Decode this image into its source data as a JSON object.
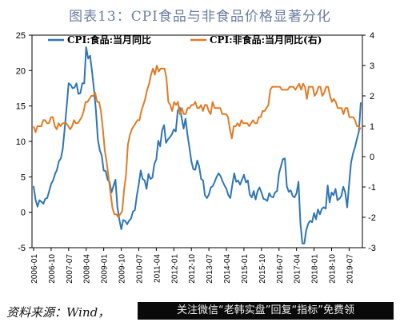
{
  "title": "图表13：CPI食品与非食品价格显著分化",
  "source": "资料来源：Wind，",
  "watermark": "关注微信“老韩实盘”回复“指标”免费领",
  "colors": {
    "food": "#2e75b6",
    "nonfood": "#e07b24"
  },
  "chart_data": {
    "type": "line",
    "title": "图表13：CPI食品与非食品价格显著分化",
    "x_labels": [
      "2006-01",
      "2006-10",
      "2007-07",
      "2008-04",
      "2009-01",
      "2009-10",
      "2010-07",
      "2011-04",
      "2012-01",
      "2012-10",
      "2013-07",
      "2014-04",
      "2015-01",
      "2015-10",
      "2016-07",
      "2017-04",
      "2018-01",
      "2018-10",
      "2019-07"
    ],
    "y_left": {
      "min": -5,
      "max": 25,
      "ticks": [
        -5,
        0,
        5,
        10,
        15,
        20,
        25
      ]
    },
    "y_right": {
      "min": -3,
      "max": 4,
      "ticks": [
        -3,
        -2,
        -1,
        0,
        1,
        2,
        3,
        4
      ]
    },
    "legend_position": "top",
    "series": [
      {
        "name": "CPI:食品:当月同比",
        "axis": "left",
        "color": "#2e75b6",
        "values": [
          3.7,
          1.8,
          0.8,
          1.7,
          1.5,
          1.2,
          1.9,
          2.0,
          3.0,
          4.0,
          4.5,
          5.4,
          6.0,
          7.2,
          7.6,
          9.0,
          12.0,
          15.0,
          18.2,
          18.0,
          17.5,
          17.6,
          18.2,
          16.7,
          16.8,
          18.2,
          18.2,
          23.3,
          21.7,
          22.1,
          19.9,
          17.3,
          14.4,
          10.3,
          8.7,
          8.0,
          5.9,
          5.8,
          4.6,
          4.3,
          2.8,
          3.7,
          4.6,
          0.8,
          -1.0,
          -2.4,
          -1.1,
          -1.2,
          -1.7,
          -1.2,
          -0.9,
          0.1,
          0.3,
          2.3,
          4.0,
          5.9,
          4.7,
          4.5,
          3.3,
          5.4,
          4.7,
          4.9,
          6.8,
          7.5,
          10.1,
          9.3,
          11.6,
          12.3,
          9.8,
          10.3,
          10.6,
          11.0,
          11.7,
          11.4,
          14.3,
          14.8,
          13.4,
          11.8,
          13.2,
          11.0,
          9.1,
          7.2,
          6.1,
          6.0,
          7.3,
          6.5,
          4.7,
          4.5,
          2.4,
          2.0,
          2.5,
          3.5,
          3.7,
          4.3,
          5.0,
          5.5,
          5.1,
          4.4,
          3.8,
          3.3,
          2.4,
          2.0,
          3.8,
          5.5,
          4.3,
          4.5,
          3.9,
          4.6,
          5.3,
          4.2,
          4.5,
          2.5,
          2.1,
          3.0,
          1.8,
          3.0,
          3.5,
          2.8,
          1.9,
          1.8,
          1.6,
          2.7,
          2.2,
          2.1,
          2.8,
          3.0,
          5.5,
          6.5,
          7.5,
          7.6,
          3.7,
          2.9,
          3.1,
          2.3,
          2.1,
          2.7,
          4.3,
          -1.5,
          -4.4,
          -4.4,
          -2.5,
          -1.6,
          -1.2,
          -1.4,
          -0.1,
          -1.0,
          0.4,
          -0.3,
          0.5,
          0.7,
          0.5,
          3.8,
          1.4,
          2.8,
          2.4,
          3.3,
          1.7,
          1.9,
          2.3,
          3.6,
          2.8,
          0.7,
          4.0,
          7.0,
          8.3,
          9.2,
          10.3,
          11.4,
          15.5
        ]
      },
      {
        "name": "CPI:非食品:当月同比(右)",
        "axis": "right",
        "color": "#e07b24",
        "values": [
          1.0,
          0.8,
          1.0,
          1.0,
          1.0,
          1.2,
          1.2,
          1.1,
          1.1,
          1.3,
          1.3,
          1.0,
          0.9,
          1.1,
          1.0,
          1.1,
          1.1,
          1.1,
          1.0,
          0.9,
          1.0,
          1.2,
          1.1,
          1.1,
          1.2,
          1.3,
          1.5,
          1.8,
          1.8,
          1.9,
          2.0,
          2.0,
          2.1,
          1.8,
          1.8,
          1.5,
          0.9,
          0.2,
          -0.2,
          -0.7,
          -1.2,
          -1.7,
          -1.9,
          -1.9,
          -2.0,
          -1.9,
          -1.8,
          -1.1,
          -0.6,
          0.4,
          0.7,
          0.9,
          1.0,
          1.1,
          1.2,
          1.2,
          1.5,
          1.7,
          1.9,
          2.2,
          2.4,
          2.7,
          2.9,
          2.7,
          3.0,
          2.8,
          2.9,
          2.9,
          2.9,
          2.6,
          1.8,
          1.7,
          1.5,
          1.8,
          1.7,
          1.8,
          1.4,
          1.6,
          1.4,
          1.4,
          1.6,
          1.6,
          1.7,
          1.7,
          1.8,
          1.6,
          1.6,
          1.7,
          1.5,
          1.7,
          1.7,
          1.5,
          1.4,
          1.8,
          1.6,
          1.6,
          1.6,
          1.6,
          1.4,
          1.4,
          1.4,
          1.3,
          0.9,
          0.6,
          1.0,
          1.0,
          1.1,
          1.0,
          1.2,
          1.1,
          1.1,
          1.1,
          1.0,
          1.1,
          1.2,
          1.1,
          1.1,
          1.3,
          1.3,
          1.5,
          1.5,
          1.6,
          1.7,
          2.2,
          2.3,
          2.3,
          2.3,
          2.3,
          2.3,
          2.2,
          2.2,
          2.2,
          2.2,
          2.3,
          2.3,
          2.3,
          2.2,
          2.3,
          2.4,
          2.2,
          2.4,
          2.3,
          1.9,
          2.3,
          2.3,
          2.3,
          2.0,
          2.1,
          2.3,
          2.3,
          2.0,
          2.1,
          2.3,
          2.3,
          2.0,
          1.8,
          1.9,
          1.8,
          1.6,
          1.6,
          1.6,
          1.4,
          1.6,
          1.6,
          1.3,
          1.3,
          1.3,
          1.2,
          1.0,
          1.0,
          0.9
        ]
      }
    ]
  }
}
